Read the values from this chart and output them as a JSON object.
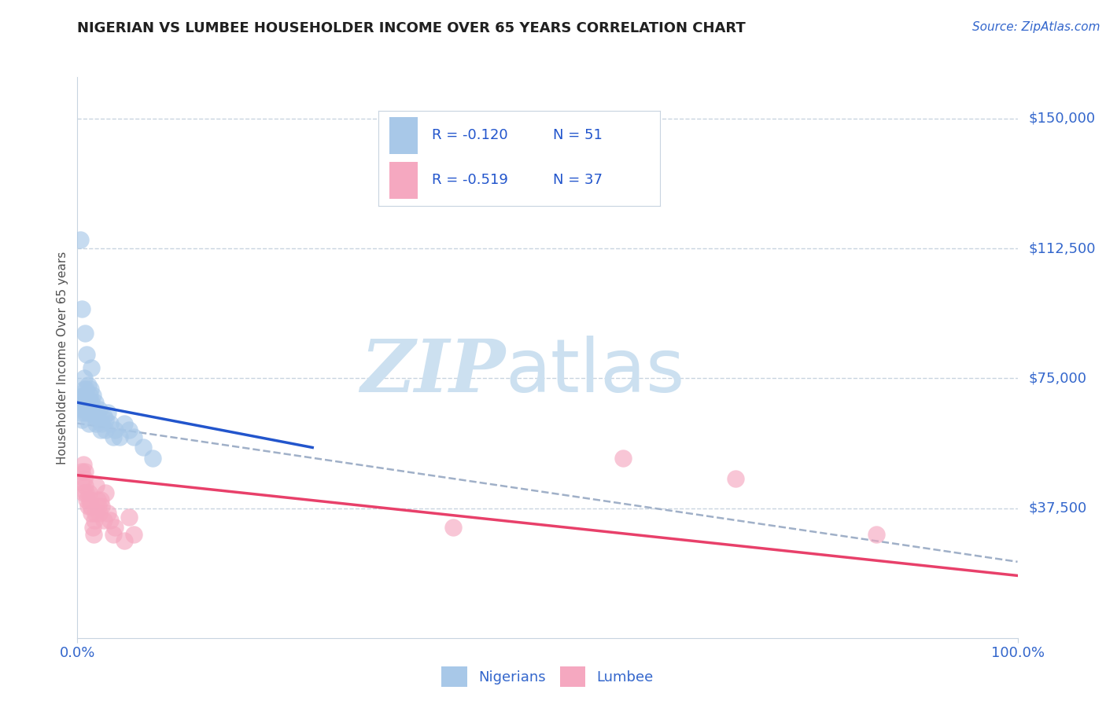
{
  "title": "NIGERIAN VS LUMBEE HOUSEHOLDER INCOME OVER 65 YEARS CORRELATION CHART",
  "source": "Source: ZipAtlas.com",
  "ylabel": "Householder Income Over 65 years",
  "xlim": [
    0.0,
    1.0
  ],
  "ylim": [
    0,
    162000
  ],
  "ytick_values": [
    37500,
    75000,
    112500,
    150000
  ],
  "ytick_labels": [
    "$37,500",
    "$75,000",
    "$112,500",
    "$150,000"
  ],
  "legend_r_nigerian": "R = -0.120",
  "legend_n_nigerian": "N = 51",
  "legend_r_lumbee": "R = -0.519",
  "legend_n_lumbee": "N = 37",
  "nigerian_color": "#a8c8e8",
  "lumbee_color": "#f5a8c0",
  "nigerian_line_color": "#2255cc",
  "lumbee_line_color": "#e8406a",
  "dashed_line_color": "#a0b0c8",
  "watermark_zip_color": "#cce0f0",
  "watermark_atlas_color": "#cce0f0",
  "background_color": "#ffffff",
  "title_color": "#202020",
  "source_color": "#3366cc",
  "axis_label_color": "#505050",
  "tick_color": "#3366cc",
  "grid_color": "#c8d4e0",
  "nigerian_points_x": [
    0.004,
    0.005,
    0.005,
    0.006,
    0.006,
    0.007,
    0.007,
    0.007,
    0.008,
    0.008,
    0.009,
    0.009,
    0.01,
    0.01,
    0.011,
    0.011,
    0.012,
    0.012,
    0.013,
    0.013,
    0.014,
    0.015,
    0.015,
    0.016,
    0.017,
    0.018,
    0.019,
    0.02,
    0.021,
    0.022,
    0.023,
    0.025,
    0.026,
    0.028,
    0.03,
    0.03,
    0.032,
    0.035,
    0.038,
    0.04,
    0.045,
    0.05,
    0.055,
    0.06,
    0.07,
    0.08,
    0.003,
    0.005,
    0.008,
    0.01,
    0.015
  ],
  "nigerian_points_y": [
    65000,
    68000,
    63000,
    70000,
    66000,
    72000,
    68000,
    75000,
    70000,
    65000,
    68000,
    72000,
    66000,
    70000,
    73000,
    67000,
    65000,
    62000,
    70000,
    68000,
    72000,
    65000,
    68000,
    70000,
    66000,
    64000,
    68000,
    62000,
    65000,
    63000,
    66000,
    60000,
    62000,
    64000,
    60000,
    63000,
    65000,
    62000,
    58000,
    60000,
    58000,
    62000,
    60000,
    58000,
    55000,
    52000,
    115000,
    95000,
    88000,
    82000,
    78000
  ],
  "lumbee_points_x": [
    0.004,
    0.005,
    0.006,
    0.006,
    0.007,
    0.008,
    0.008,
    0.009,
    0.01,
    0.011,
    0.012,
    0.013,
    0.014,
    0.015,
    0.016,
    0.017,
    0.018,
    0.019,
    0.02,
    0.021,
    0.022,
    0.023,
    0.025,
    0.026,
    0.028,
    0.03,
    0.032,
    0.035,
    0.038,
    0.04,
    0.05,
    0.055,
    0.06,
    0.4,
    0.58,
    0.7,
    0.85
  ],
  "lumbee_points_y": [
    45000,
    48000,
    42000,
    50000,
    46000,
    44000,
    48000,
    42000,
    40000,
    38000,
    42000,
    40000,
    38000,
    36000,
    32000,
    30000,
    34000,
    36000,
    44000,
    40000,
    38000,
    36000,
    40000,
    38000,
    34000,
    42000,
    36000,
    34000,
    30000,
    32000,
    28000,
    35000,
    30000,
    32000,
    52000,
    46000,
    30000
  ],
  "nigerian_trend_x0": 0.0,
  "nigerian_trend_y0": 68000,
  "nigerian_trend_x1": 0.25,
  "nigerian_trend_y1": 55000,
  "lumbee_trend_x0": 0.0,
  "lumbee_trend_y0": 47000,
  "lumbee_trend_x1": 1.0,
  "lumbee_trend_y1": 18000,
  "dashed_trend_x0": 0.0,
  "dashed_trend_y0": 62000,
  "dashed_trend_x1": 1.0,
  "dashed_trend_y1": 22000
}
